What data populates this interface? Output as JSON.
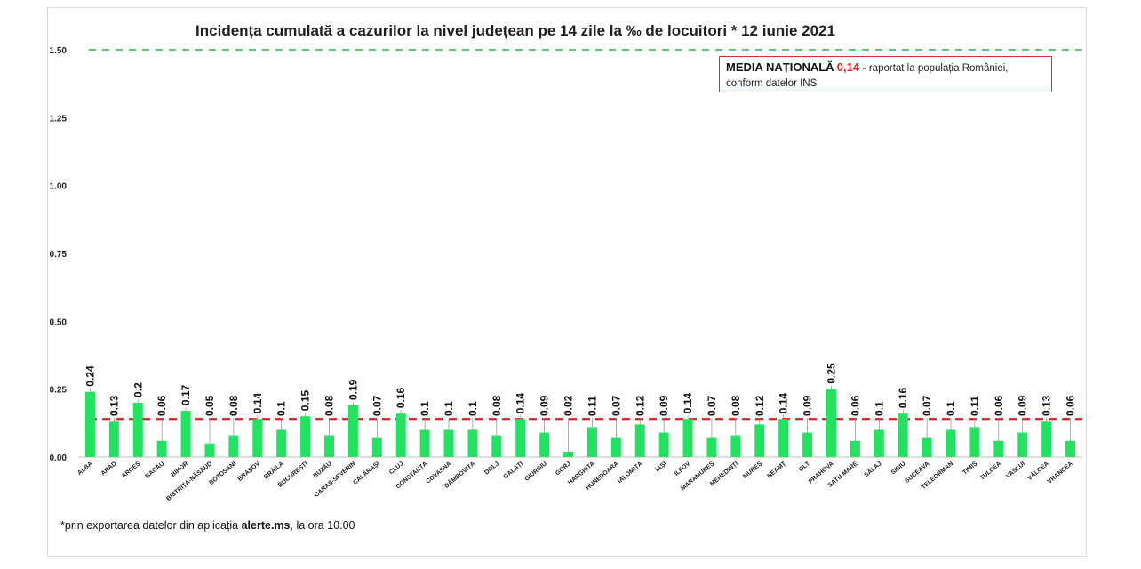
{
  "chart_data": {
    "type": "bar",
    "title": "Incidența cumulată a cazurilor la nivel județean pe 14 zile la ‰ de locuitori *  12 iunie 2021",
    "categories": [
      "ALBA",
      "ARAD",
      "ARGEȘ",
      "BACĂU",
      "BIHOR",
      "BISTRIȚA-NĂSĂUD",
      "BOTOȘANI",
      "BRAȘOV",
      "BRĂILA",
      "BUCUREȘTI",
      "BUZĂU",
      "CARAȘ-SEVERIN",
      "CĂLĂRAȘI",
      "CLUJ",
      "CONSTANȚA",
      "COVASNA",
      "DÂMBOVIȚA",
      "DOLJ",
      "GALAȚI",
      "GIURGIU",
      "GORJ",
      "HARGHITA",
      "HUNEDOARA",
      "IALOMIȚA",
      "IAȘI",
      "ILFOV",
      "MARAMUREȘ",
      "MEHEDINȚI",
      "MUREȘ",
      "NEAMȚ",
      "OLT",
      "PRAHOVA",
      "SATU MARE",
      "SĂLAJ",
      "SIBIU",
      "SUCEAVA",
      "TELEORMAN",
      "TIMIȘ",
      "TULCEA",
      "VASLUI",
      "VÂLCEA",
      "VRANCEA"
    ],
    "values": [
      0.24,
      0.13,
      0.2,
      0.06,
      0.17,
      0.05,
      0.08,
      0.14,
      0.1,
      0.15,
      0.08,
      0.19,
      0.07,
      0.16,
      0.1,
      0.1,
      0.1,
      0.08,
      0.14,
      0.09,
      0.02,
      0.11,
      0.07,
      0.12,
      0.09,
      0.14,
      0.07,
      0.08,
      0.12,
      0.14,
      0.09,
      0.25,
      0.06,
      0.1,
      0.16,
      0.07,
      0.1,
      0.11,
      0.06,
      0.09,
      0.13,
      0.06
    ],
    "data_labels": [
      "0.24",
      "0.13",
      "0.2",
      "0.06",
      "0.17",
      "0.05",
      "0.08",
      "0.14",
      "0.1",
      "0.15",
      "0.08",
      "0.19",
      "0.07",
      "0.16",
      "0.1",
      "0.1",
      "0.1",
      "0.08",
      "0.14",
      "0.09",
      "0.02",
      "0.11",
      "0.07",
      "0.12",
      "0.09",
      "0.14",
      "0.07",
      "0.08",
      "0.12",
      "0.14",
      "0.09",
      "0.25",
      "0.06",
      "0.1",
      "0.16",
      "0.07",
      "0.1",
      "0.11",
      "0.06",
      "0.09",
      "0.13",
      "0.06"
    ],
    "yticks": [
      "0.00",
      "0.25",
      "0.50",
      "0.75",
      "1.00",
      "1.25",
      "1.50"
    ],
    "ylim": [
      0,
      1.5
    ],
    "reference_lines": [
      {
        "value": 1.5,
        "color": "#2eb04f",
        "style": "dashed"
      },
      {
        "value": 0.14,
        "color": "#e02020",
        "style": "dashed"
      }
    ],
    "bar_color": "#22e35f",
    "grid": false
  },
  "annotation": {
    "label": "MEDIA NAȚIONALĂ",
    "value": "0,14",
    "dash": "-",
    "text_line1": "raportat la populația României,",
    "text_line2": "conform datelor INS"
  },
  "footnote": {
    "prefix": "*prin exportarea datelor din aplicația ",
    "bold": "alerte.ms",
    "suffix": ", la ora 10.00"
  }
}
